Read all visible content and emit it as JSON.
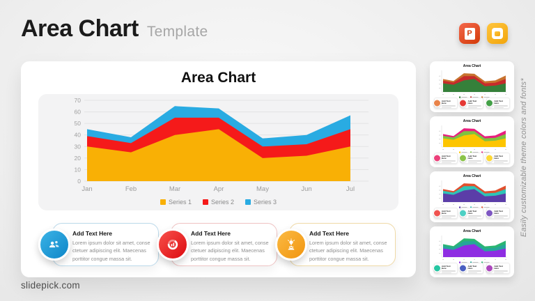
{
  "header": {
    "title": "Area Chart",
    "subtitle": "Template"
  },
  "app_icons": {
    "powerpoint": "PowerPoint",
    "google_slides": "Google Slides"
  },
  "chart_data": {
    "type": "area",
    "stacked": true,
    "title": "Area Chart",
    "categories": [
      "Jan",
      "Feb",
      "Mar",
      "Apr",
      "May",
      "Jun",
      "Jul"
    ],
    "series": [
      {
        "name": "Series 1",
        "color": "#F9B005",
        "values": [
          30,
          25,
          40,
          45,
          20,
          22,
          30
        ]
      },
      {
        "name": "Series 2",
        "color": "#F51A1A",
        "values": [
          9,
          8,
          15,
          10,
          10,
          10,
          15
        ]
      },
      {
        "name": "Series 3",
        "color": "#29ABE2",
        "values": [
          6,
          5,
          10,
          8,
          7,
          8,
          12
        ]
      }
    ],
    "stack_tops": [
      [
        30,
        25,
        40,
        45,
        20,
        22,
        30
      ],
      [
        39,
        33,
        55,
        55,
        30,
        32,
        45
      ],
      [
        45,
        38,
        65,
        63,
        37,
        40,
        57
      ]
    ],
    "xlabel": "",
    "ylabel": "",
    "ylim": [
      0,
      70
    ],
    "yticks": [
      0,
      10,
      20,
      30,
      40,
      50,
      60,
      70
    ],
    "grid": true,
    "legend_position": "bottom"
  },
  "info_cards": [
    {
      "title": "Add Text Here",
      "body": "Lorem ipsum dolor sit amet, conse ctetuer adipiscing elit. Maecenas porttitor congue massa sit.",
      "icon": "team-icon",
      "accent1": "#3BB3E6",
      "accent2": "#0E86C8",
      "border": "#BBD9EA"
    },
    {
      "title": "Add Text Here",
      "body": "Lorem ipsum dolor sit amet, conse ctetuer adipiscing elit. Maecenas porttitor congue massa sit.",
      "icon": "donut-chart-icon",
      "accent1": "#F8514B",
      "accent2": "#DC0A0F",
      "border": "#EFC3C3"
    },
    {
      "title": "Add Text Here",
      "body": "Lorem ipsum dolor sit amet, conse ctetuer adipiscing elit. Maecenas porttitor congue massa sit.",
      "icon": "idea-person-icon",
      "accent1": "#FBBA43",
      "accent2": "#F1950F",
      "border": "#EFD9A6"
    }
  ],
  "thumbnails": [
    {
      "title": "Area Chart",
      "series_colors": [
        "#35803A",
        "#C62B2B",
        "#C8732F"
      ],
      "icon_colors": [
        "#E8834A",
        "#E53935",
        "#43A047"
      ]
    },
    {
      "title": "Area Chart",
      "series_colors": [
        "#FDC500",
        "#7FC241",
        "#E81F7E"
      ],
      "icon_colors": [
        "#EC407A",
        "#8BC34A",
        "#FDD835"
      ]
    },
    {
      "title": "Area Chart",
      "series_colors": [
        "#5B3DA8",
        "#2EC4B6",
        "#E0502E"
      ],
      "icon_colors": [
        "#EF5350",
        "#4DD0C4",
        "#7E57C2"
      ]
    },
    {
      "title": "Area Chart",
      "series_colors": [
        "#8E2DE2",
        "#26A69A",
        "#2BB673"
      ],
      "icon_colors": [
        "#26C6A2",
        "#4A5FC1",
        "#AB47BC"
      ]
    }
  ],
  "thumbnail_card_title": "Add Text Here",
  "sidebar_note": "Easily customizable theme colors and fonts*",
  "footer": {
    "website": "slidepick.com"
  }
}
